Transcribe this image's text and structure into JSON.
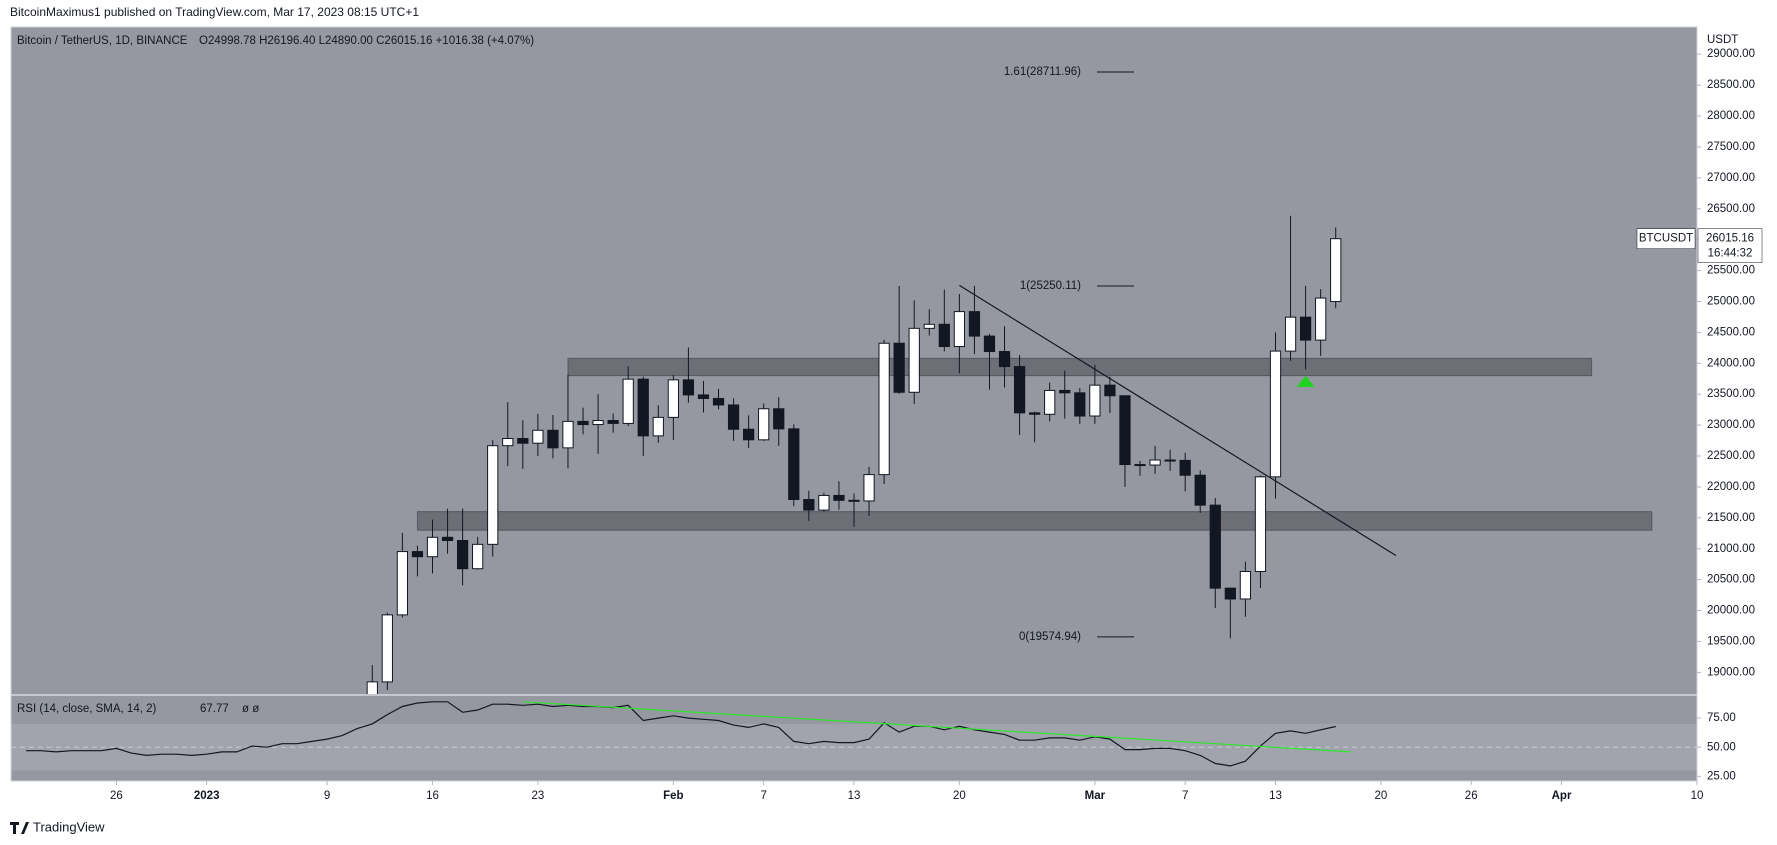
{
  "header": {
    "publisher": "BitcoinMaximus1 published on TradingView.com, Mar 17, 2023 08:15 UTC+1"
  },
  "footer": {
    "brand": "TradingView"
  },
  "chart_data": {
    "type": "candlestick",
    "title": "Bitcoin / TetherUS, 1D, BINANCE",
    "ohlc_summary": "O24998.78 H26196.40 L24890.00 C26015.16 +1016.38 (+4.07%)",
    "y_axis_label": "USDT",
    "up_color": "#ffffff",
    "down_color": "#131722",
    "x": [
      "2022-12-20",
      "2022-12-21",
      "2022-12-22",
      "2022-12-23",
      "2022-12-24",
      "2022-12-25",
      "2022-12-26",
      "2022-12-27",
      "2022-12-28",
      "2022-12-29",
      "2022-12-30",
      "2022-12-31",
      "2023-01-01",
      "2023-01-02",
      "2023-01-03",
      "2023-01-04",
      "2023-01-05",
      "2023-01-06",
      "2023-01-07",
      "2023-01-08",
      "2023-01-09",
      "2023-01-10",
      "2023-01-11",
      "2023-01-12",
      "2023-01-13",
      "2023-01-14",
      "2023-01-15",
      "2023-01-16",
      "2023-01-17",
      "2023-01-18",
      "2023-01-19",
      "2023-01-20",
      "2023-01-21",
      "2023-01-22",
      "2023-01-23",
      "2023-01-24",
      "2023-01-25",
      "2023-01-26",
      "2023-01-27",
      "2023-01-28",
      "2023-01-29",
      "2023-01-30",
      "2023-01-31",
      "2023-02-01",
      "2023-02-02",
      "2023-02-03",
      "2023-02-04",
      "2023-02-05",
      "2023-02-06",
      "2023-02-07",
      "2023-02-08",
      "2023-02-09",
      "2023-02-10",
      "2023-02-11",
      "2023-02-12",
      "2023-02-13",
      "2023-02-14",
      "2023-02-15",
      "2023-02-16",
      "2023-02-17",
      "2023-02-18",
      "2023-02-19",
      "2023-02-20",
      "2023-02-21",
      "2023-02-22",
      "2023-02-23",
      "2023-02-24",
      "2023-02-25",
      "2023-02-26",
      "2023-02-27",
      "2023-02-28",
      "2023-03-01",
      "2023-03-02",
      "2023-03-03",
      "2023-03-04",
      "2023-03-05",
      "2023-03-06",
      "2023-03-07",
      "2023-03-08",
      "2023-03-09",
      "2023-03-10",
      "2023-03-11",
      "2023-03-12",
      "2023-03-13",
      "2023-03-14",
      "2023-03-15",
      "2023-03-16",
      "2023-03-17"
    ],
    "open": [
      null,
      null,
      null,
      null,
      null,
      null,
      null,
      null,
      null,
      null,
      null,
      null,
      null,
      null,
      null,
      null,
      null,
      null,
      null,
      null,
      null,
      null,
      null,
      17943,
      18846,
      19930,
      20954,
      20871,
      21185,
      21133,
      20677,
      21071,
      22667,
      22783,
      22707,
      22916,
      22632,
      23060,
      23009,
      23074,
      23027,
      23743,
      22826,
      23125,
      23732,
      23488,
      23431,
      23326,
      22933,
      22762,
      23264,
      22939,
      21796,
      21625,
      21862,
      21783,
      21773,
      22199,
      24324,
      23531,
      24565,
      24631,
      24271,
      24836,
      24440,
      24190,
      23947,
      23198,
      23175,
      23561,
      23522,
      23147,
      23646,
      23475,
      22362,
      22354,
      22435,
      22429,
      22189,
      21705,
      20362,
      20187,
      20632,
      22163,
      24197,
      24746,
      24375,
      24998.78
    ],
    "high": [
      null,
      null,
      null,
      null,
      null,
      null,
      null,
      null,
      null,
      null,
      null,
      null,
      null,
      null,
      null,
      null,
      null,
      null,
      null,
      null,
      null,
      null,
      null,
      19117,
      19966,
      21258,
      21050,
      21470,
      21648,
      21650,
      21192,
      22755,
      23371,
      23078,
      23180,
      23162,
      23816,
      23282,
      23500,
      23189,
      23950,
      23783,
      23320,
      23812,
      24255,
      23715,
      23587,
      23433,
      23158,
      23350,
      23452,
      23011,
      21938,
      21906,
      22090,
      21894,
      22322,
      24380,
      25250,
      25019,
      24876,
      25192,
      25121,
      25250,
      24476,
      24600,
      24132,
      23218,
      23689,
      23880,
      23600,
      23977,
      23783,
      23479,
      22420,
      22666,
      22602,
      22554,
      22268,
      21820,
      20367,
      20792,
      22185,
      24500,
      26386,
      25250,
      25200,
      26196.4
    ],
    "low": [
      null,
      null,
      null,
      null,
      null,
      null,
      null,
      null,
      null,
      null,
      null,
      null,
      null,
      null,
      null,
      null,
      null,
      null,
      null,
      null,
      null,
      null,
      null,
      17910,
      18714,
      19888,
      20552,
      20600,
      20920,
      20407,
      20660,
      20873,
      22337,
      22292,
      22500,
      22462,
      22300,
      22850,
      22534,
      22878,
      22985,
      22500,
      22714,
      22760,
      23363,
      23204,
      23253,
      22745,
      22628,
      22745,
      22665,
      21688,
      21451,
      21599,
      21632,
      21351,
      21532,
      22047,
      23505,
      23343,
      24450,
      24192,
      23840,
      24148,
      23574,
      23608,
      22841,
      22722,
      23060,
      23106,
      23020,
      23020,
      23195,
      22000,
      22180,
      22211,
      22258,
      21927,
      21580,
      20042,
      19549,
      19900,
      20366,
      21813,
      24041,
      23900,
      24120,
      24890
    ],
    "close": [
      null,
      null,
      null,
      null,
      null,
      null,
      null,
      null,
      null,
      null,
      null,
      null,
      null,
      null,
      null,
      null,
      null,
      null,
      null,
      null,
      null,
      null,
      null,
      18846,
      19930,
      20954,
      20871,
      21185,
      21133,
      20677,
      21071,
      22667,
      22783,
      22707,
      22916,
      22632,
      23060,
      23009,
      23074,
      23027,
      23743,
      22826,
      23125,
      23732,
      23488,
      23431,
      23326,
      22933,
      22762,
      23264,
      22939,
      21796,
      21625,
      21862,
      21783,
      21773,
      22199,
      24324,
      23531,
      24565,
      24631,
      24271,
      24836,
      24440,
      24190,
      23947,
      23198,
      23175,
      23561,
      23522,
      23147,
      23646,
      23475,
      22362,
      22354,
      22435,
      22429,
      22189,
      21705,
      20362,
      20187,
      20632,
      22163,
      24197,
      24746,
      24375,
      25055,
      26015.16
    ],
    "xlim": [
      "2022-12-19",
      "2023-04-10"
    ],
    "xticks": [
      {
        "value": "2022-12-26",
        "label": "26"
      },
      {
        "value": "2023-01-01",
        "label": "2023"
      },
      {
        "value": "2023-01-09",
        "label": "9"
      },
      {
        "value": "2023-01-16",
        "label": "16"
      },
      {
        "value": "2023-01-23",
        "label": "23"
      },
      {
        "value": "2023-02-01",
        "label": "Feb"
      },
      {
        "value": "2023-02-07",
        "label": "7"
      },
      {
        "value": "2023-02-13",
        "label": "13"
      },
      {
        "value": "2023-02-20",
        "label": "20"
      },
      {
        "value": "2023-03-01",
        "label": "Mar"
      },
      {
        "value": "2023-03-07",
        "label": "7"
      },
      {
        "value": "2023-03-13",
        "label": "13"
      },
      {
        "value": "2023-03-20",
        "label": "20"
      },
      {
        "value": "2023-03-26",
        "label": "26"
      },
      {
        "value": "2023-04-01",
        "label": "Apr"
      },
      {
        "value": "2023-04-10",
        "label": "10"
      }
    ],
    "ylim": [
      18650,
      29440
    ],
    "yticks": [
      {
        "value": 19000,
        "label": "19000.00"
      },
      {
        "value": 19500,
        "label": "19500.00"
      },
      {
        "value": 20000,
        "label": "20000.00"
      },
      {
        "value": 20500,
        "label": "20500.00"
      },
      {
        "value": 21000,
        "label": "21000.00"
      },
      {
        "value": 21500,
        "label": "21500.00"
      },
      {
        "value": 22000,
        "label": "22000.00"
      },
      {
        "value": 22500,
        "label": "22500.00"
      },
      {
        "value": 23000,
        "label": "23000.00"
      },
      {
        "value": 23500,
        "label": "23500.00"
      },
      {
        "value": 24000,
        "label": "24000.00"
      },
      {
        "value": 24500,
        "label": "24500.00"
      },
      {
        "value": 25000,
        "label": "25000.00"
      },
      {
        "value": 25500,
        "label": "25500.00"
      },
      {
        "value": 26000,
        "label": "26000.00"
      },
      {
        "value": 26500,
        "label": "26500.00"
      },
      {
        "value": 27000,
        "label": "27000.00"
      },
      {
        "value": 27500,
        "label": "27500.00"
      },
      {
        "value": 28000,
        "label": "28000.00"
      },
      {
        "value": 28500,
        "label": "28500.00"
      },
      {
        "value": 29000,
        "label": "29000.00"
      }
    ],
    "price_tag": {
      "symbol": "BTCUSDT",
      "value": 26015.16,
      "value_label": "26015.16",
      "countdown": "16:44:32"
    },
    "fib_levels": [
      {
        "label": "1.61(28711.96)",
        "value": 28711.96
      },
      {
        "label": "1(25250.11)",
        "value": 25250.11
      },
      {
        "label": "0(19574.94)",
        "value": 19574.94
      }
    ],
    "zones": [
      {
        "from": "2023-01-25",
        "to": "2023-04-03",
        "low": 23800,
        "high": 24080
      },
      {
        "from": "2023-01-15",
        "to": "2023-04-07",
        "low": 21300,
        "high": 21600
      }
    ],
    "trendline": {
      "x": [
        "2023-02-20",
        "2023-03-21"
      ],
      "y": [
        25260,
        20890
      ]
    },
    "marker": {
      "x": "2023-03-15",
      "y": 23700,
      "color": "#1fd41f"
    },
    "rsi": {
      "title": "RSI (14, close, SMA, 14, 2)",
      "hidden_values": "ø ø",
      "color": "#131722",
      "values": [
        47,
        47,
        46,
        47,
        47,
        47,
        49,
        45,
        43,
        44,
        44,
        43,
        44,
        46,
        46,
        51,
        50,
        53,
        53,
        55,
        57,
        60,
        66,
        70,
        78,
        85,
        88,
        89,
        89,
        80,
        82,
        87,
        87,
        86,
        87,
        85,
        86,
        85,
        85,
        84,
        86,
        73,
        75,
        77,
        75,
        74,
        73,
        69,
        67,
        70,
        67,
        55,
        53,
        55,
        54,
        54,
        57,
        71,
        63,
        68,
        68,
        65,
        68,
        65,
        63,
        61,
        56,
        56,
        58,
        58,
        56,
        59,
        57,
        48,
        48,
        49,
        49,
        47,
        43,
        36,
        34,
        38,
        51,
        62,
        64,
        62,
        65,
        67.77
      ],
      "ylim": [
        21,
        94
      ],
      "yticks": [
        {
          "value": 25,
          "label": "25.00"
        },
        {
          "value": 50,
          "label": "50.00"
        },
        {
          "value": 75,
          "label": "75.00"
        }
      ],
      "band": [
        30,
        70
      ],
      "midline": 50,
      "trendline": {
        "x": [
          "2023-01-22",
          "2023-03-18"
        ],
        "y": [
          89,
          46
        ],
        "color": "#2ee62e"
      }
    }
  }
}
